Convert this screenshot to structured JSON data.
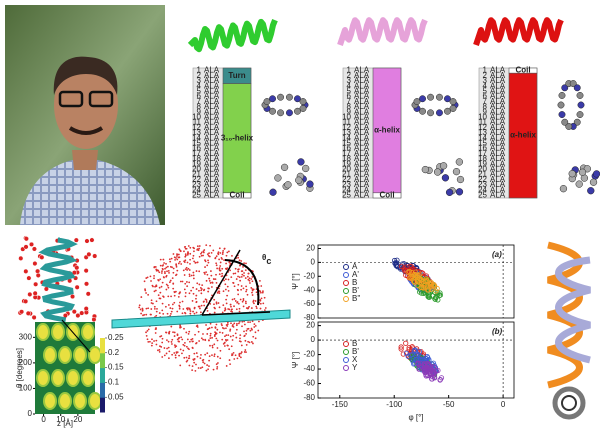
{
  "helix_panels": [
    {
      "segments": [
        "Turn",
        "3₁₀-helix",
        "Coil"
      ],
      "colors": [
        "#3b8c8c",
        "#82d14c",
        "#ffffff"
      ],
      "helix_color": "#2fcc2f"
    },
    {
      "segments": [
        "α-helix",
        "Coil"
      ],
      "colors": [
        "#e07ee0",
        "#ffffff"
      ],
      "helix_color": "#e6a3d9"
    },
    {
      "segments": [
        "Coil",
        "α-helix"
      ],
      "colors": [
        "#ffffff",
        "#e01414"
      ],
      "helix_color": "#dd1111"
    }
  ],
  "residue_name": "ALA",
  "residue_numbers": [
    1,
    2,
    3,
    4,
    5,
    6,
    7,
    8,
    9,
    10,
    11,
    12,
    13,
    14,
    15,
    16,
    17,
    18,
    19,
    20,
    21,
    22,
    23,
    24,
    25
  ],
  "heatmap": {
    "y_label": "θ [degrees]",
    "x_label": "z [Å]",
    "ylim": [
      0,
      360
    ],
    "yticks": [
      0,
      100,
      200,
      300
    ],
    "xlim": [
      -5,
      30
    ],
    "xticks": [
      0,
      10,
      20
    ],
    "colorbar_lim": [
      0,
      0.25
    ],
    "colorbar_ticks": [
      0.05,
      0.1,
      0.15,
      0.2,
      0.25
    ]
  },
  "sphere": {
    "angle_symbol": "θ",
    "angle_subscript": "c"
  },
  "scatter": {
    "y_label": "Ψ [°]",
    "x_label": "φ [°]",
    "xlim": [
      -170,
      10
    ],
    "xticks": [
      -150,
      -100,
      -50,
      0
    ],
    "ylim": [
      -80,
      25
    ],
    "yticks": [
      20,
      0,
      -20,
      -40,
      -60,
      -80
    ],
    "plots": [
      {
        "label": "(a)",
        "series": [
          {
            "name": "A",
            "color": "#1b2a86"
          },
          {
            "name": "A'",
            "color": "#3d5bd6"
          },
          {
            "name": "B",
            "color": "#d62020"
          },
          {
            "name": "B'",
            "color": "#2a9a2a"
          },
          {
            "name": "B''",
            "color": "#f0a020"
          }
        ]
      },
      {
        "label": "(b)",
        "series": [
          {
            "name": "B",
            "color": "#d62020"
          },
          {
            "name": "B'",
            "color": "#2a9a2a"
          },
          {
            "name": "X",
            "color": "#3d5bd6"
          },
          {
            "name": "Y",
            "color": "#8a3ab8"
          }
        ]
      }
    ]
  }
}
